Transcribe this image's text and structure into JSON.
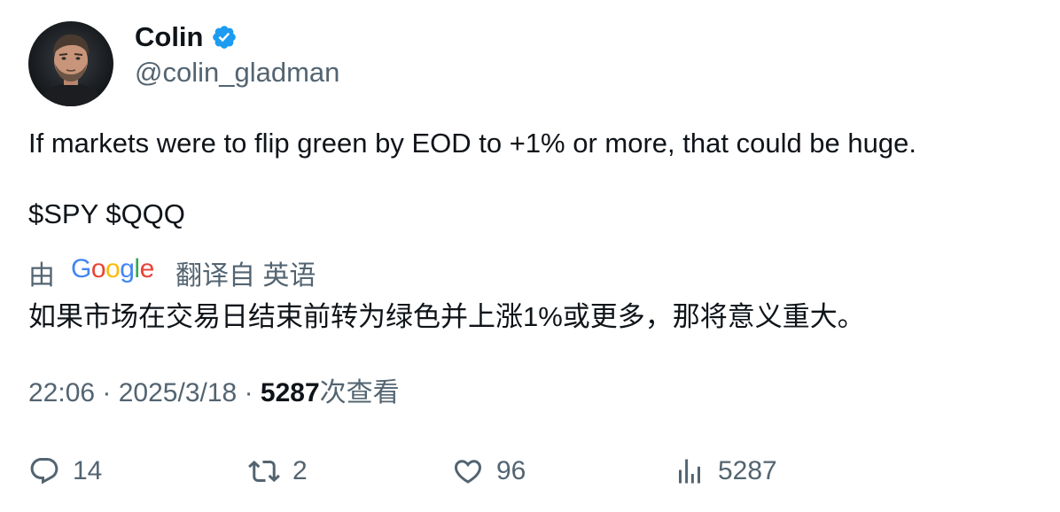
{
  "author": {
    "display_name": "Colin",
    "handle": "@colin_gladman",
    "verified": true
  },
  "tweet": {
    "text_line1": "If markets were to flip green by EOD to +1% or more, that could be huge.",
    "text_line2": "$SPY $QQQ"
  },
  "translation": {
    "prefix": "由",
    "provider": "Google",
    "label": "翻译自 英语",
    "text": "如果市场在交易日结束前转为绿色并上涨1%或更多，那将意义重大。"
  },
  "meta": {
    "time": "22:06",
    "separator": "·",
    "date": "2025/3/18",
    "views_count": "5287",
    "views_label": "次查看"
  },
  "actions": {
    "replies": "14",
    "retweets": "2",
    "likes": "96",
    "views": "5287"
  },
  "colors": {
    "text": "#0f1419",
    "secondary": "#536471",
    "verified": "#1d9bf0"
  }
}
